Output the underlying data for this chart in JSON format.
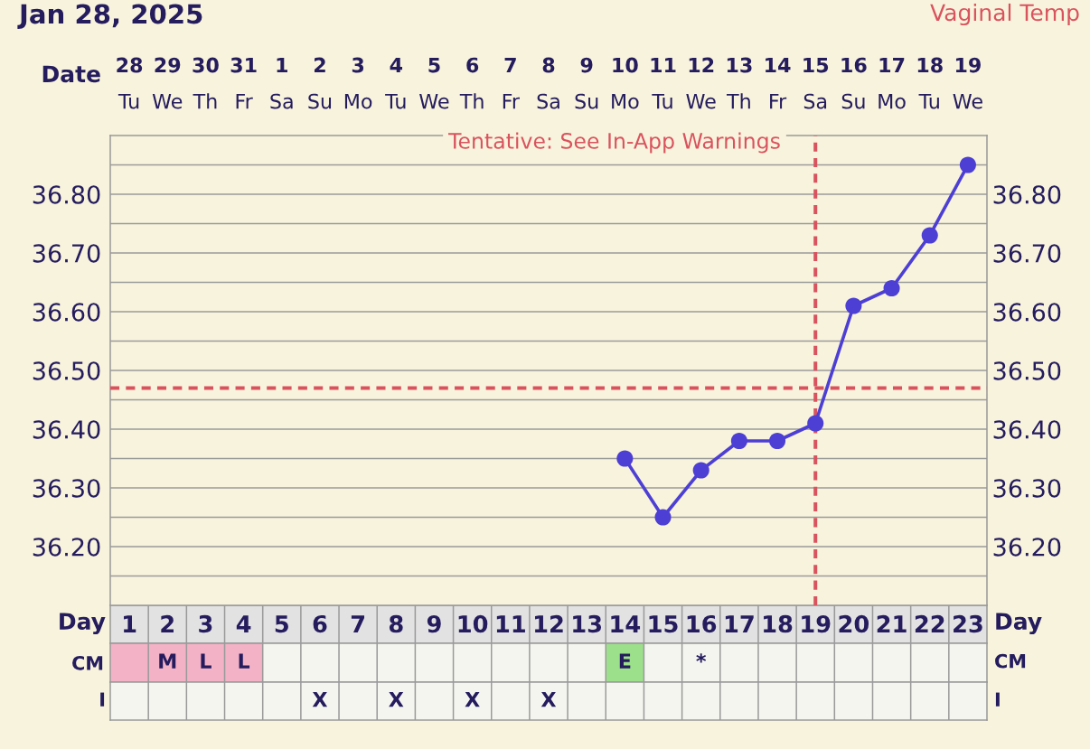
{
  "chart_data": [
    {
      "type": "line",
      "title": "Jan 28, 2025",
      "annotations": [
        "Vaginal Temp",
        "Tentative: See In-App Warnings",
        "Tu",
        "We",
        "Th",
        "Fr",
        "Sa",
        "Su",
        "Mo",
        "Tu",
        "We",
        "Th",
        "Fr",
        "Sa",
        "Su",
        "Mo",
        "Tu",
        "We",
        "Th",
        "Fr",
        "Sa",
        "Su",
        "Mo",
        "Tu",
        "We"
      ],
      "categories": [
        "1",
        "2",
        "3",
        "4",
        "5",
        "6",
        "7",
        "8",
        "9",
        "10",
        "11",
        "12",
        "13",
        "14",
        "15",
        "16",
        "17",
        "18",
        "19",
        "20",
        "21",
        "22",
        "23"
      ],
      "xlabel": "Day",
      "x2label": "Date",
      "x2lim": [
        "2025-01-27T12:00",
        "2025-02-19T12:00"
      ],
      "x2ticks": [
        {
          "value": "2025-01-28",
          "label": "28"
        },
        {
          "value": "2025-01-29",
          "label": "29"
        },
        {
          "value": "2025-01-30",
          "label": "30"
        },
        {
          "value": "2025-01-31",
          "label": "31"
        },
        {
          "value": "2025-02-01",
          "label": "1"
        },
        {
          "value": "2025-02-02",
          "label": "2"
        },
        {
          "value": "2025-02-03",
          "label": "3"
        },
        {
          "value": "2025-02-04",
          "label": "4"
        },
        {
          "value": "2025-02-05",
          "label": "5"
        },
        {
          "value": "2025-02-06",
          "label": "6"
        },
        {
          "value": "2025-02-07",
          "label": "7"
        },
        {
          "value": "2025-02-08",
          "label": "8"
        },
        {
          "value": "2025-02-09",
          "label": "9"
        },
        {
          "value": "2025-02-10",
          "label": "10"
        },
        {
          "value": "2025-02-11",
          "label": "11"
        },
        {
          "value": "2025-02-12",
          "label": "12"
        },
        {
          "value": "2025-02-13",
          "label": "13"
        },
        {
          "value": "2025-02-14",
          "label": "14"
        },
        {
          "value": "2025-02-15",
          "label": "15"
        },
        {
          "value": "2025-02-16",
          "label": "16"
        },
        {
          "value": "2025-02-17",
          "label": "17"
        },
        {
          "value": "2025-02-18",
          "label": "18"
        },
        {
          "value": "2025-02-19",
          "label": "19"
        }
      ],
      "ylim": [
        36.1,
        36.9
      ],
      "yticks": [
        {
          "value": 36.15,
          "label": null
        },
        {
          "value": 36.2,
          "label": "36.20"
        },
        {
          "value": 36.25,
          "label": null
        },
        {
          "value": 36.3,
          "label": "36.30"
        },
        {
          "value": 36.35,
          "label": null
        },
        {
          "value": 36.4,
          "label": "36.40"
        },
        {
          "value": 36.45,
          "label": null
        },
        {
          "value": 36.5,
          "label": "36.50"
        },
        {
          "value": 36.55,
          "label": null
        },
        {
          "value": 36.6,
          "label": "36.60"
        },
        {
          "value": 36.65,
          "label": null
        },
        {
          "value": 36.7,
          "label": "36.70"
        },
        {
          "value": 36.75,
          "label": null
        },
        {
          "value": 36.8,
          "label": "36.80"
        },
        {
          "value": 36.85,
          "label": null
        }
      ],
      "y2lim": [
        36.1,
        36.9
      ],
      "y2ticks": [
        {
          "value": 36.15,
          "label": null
        },
        {
          "value": 36.2,
          "label": "36.20"
        },
        {
          "value": 36.25,
          "label": null
        },
        {
          "value": 36.3,
          "label": "36.30"
        },
        {
          "value": 36.35,
          "label": null
        },
        {
          "value": 36.4,
          "label": "36.40"
        },
        {
          "value": 36.45,
          "label": null
        },
        {
          "value": 36.5,
          "label": "36.50"
        },
        {
          "value": 36.55,
          "label": null
        },
        {
          "value": 36.6,
          "label": "36.60"
        },
        {
          "value": 36.65,
          "label": null
        },
        {
          "value": 36.7,
          "label": "36.70"
        },
        {
          "value": 36.75,
          "label": null
        },
        {
          "value": 36.8,
          "label": "36.80"
        },
        {
          "value": 36.85,
          "label": null
        }
      ],
      "series": [
        {
          "color": "#4d3fd4",
          "values": [
            null,
            null,
            null,
            null,
            null,
            null,
            null,
            null,
            null,
            null,
            null,
            null,
            null,
            36.35,
            36.25,
            36.33,
            36.38,
            36.38,
            36.41,
            36.61,
            36.64,
            36.73,
            36.85
          ]
        }
      ],
      "marker": "circle",
      "line_style": "solid",
      "grid": true,
      "ref_lines": [
        {
          "axis": "y",
          "value": 36.47,
          "color": "#d9535f",
          "line_style": "dashed"
        },
        {
          "axis": "x",
          "value": "19",
          "color": "#d9535f",
          "line_style": "dashed"
        }
      ]
    },
    {
      "type": "heatmap",
      "tick_labels": "y",
      "categories": [
        "1",
        "2",
        "3",
        "4",
        "5",
        "6",
        "7",
        "8",
        "9",
        "10",
        "11",
        "12",
        "13",
        "14",
        "15",
        "16",
        "17",
        "18",
        "19",
        "20",
        "21",
        "22",
        "23"
      ],
      "y_categories": [
        "CM"
      ],
      "y2_categories": [
        "CM"
      ],
      "cells": [
        [
          null,
          null,
          null,
          null,
          null,
          null,
          null,
          null,
          null,
          null,
          null,
          null,
          null,
          null,
          null,
          null,
          null,
          null,
          null,
          null,
          null,
          null,
          null
        ]
      ],
      "cell_labels": [
        [
          null,
          "M",
          "L",
          "L",
          null,
          null,
          null,
          null,
          null,
          null,
          null,
          null,
          null,
          "E",
          null,
          "*",
          null,
          null,
          null,
          null,
          null,
          null,
          null
        ]
      ],
      "bands": [
        {
          "axis": "x",
          "from": "1",
          "to": "4",
          "color": "#f4b2c6"
        },
        {
          "axis": "x",
          "from": "14",
          "to": "14",
          "color": "#9de08b"
        }
      ]
    },
    {
      "type": "other",
      "ylabel": "I",
      "y2label": "I",
      "annotations": [
        {
          "text": "X",
          "x": "6"
        },
        {
          "text": "X",
          "x": "8"
        },
        {
          "text": "X",
          "x": "10"
        },
        {
          "text": "X",
          "x": "12"
        }
      ]
    }
  ]
}
